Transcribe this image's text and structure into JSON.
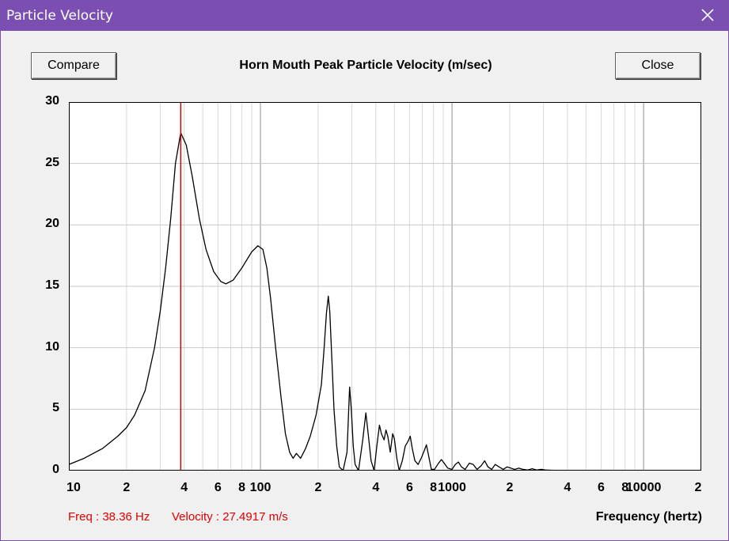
{
  "window": {
    "title": "Particle Velocity"
  },
  "buttons": {
    "compare_label": "Compare",
    "close_label": "Close"
  },
  "status": {
    "freq_text": "Freq : 38.36 Hz",
    "velocity_text": "Velocity : 27.4917 m/s"
  },
  "colors": {
    "titlebar": "#7a4fb1",
    "cursor": "#e00000",
    "curve": "#000000",
    "grid": "#c8c8c8"
  },
  "chart_data": {
    "type": "line",
    "title": "Horn Mouth Peak Particle Velocity (m/sec)",
    "xlabel": "Frequency (hertz)",
    "ylabel": "",
    "x_scale": "log",
    "xlim": [
      10,
      20000
    ],
    "ylim": [
      0,
      30
    ],
    "grid": true,
    "y_ticks": [
      "0",
      "5",
      "10",
      "15",
      "20",
      "25",
      "30"
    ],
    "x_tick_labels": [
      {
        "x": 10,
        "label": "10"
      },
      {
        "x": 20,
        "label": "2"
      },
      {
        "x": 40,
        "label": "4"
      },
      {
        "x": 60,
        "label": "6"
      },
      {
        "x": 80,
        "label": "8"
      },
      {
        "x": 100,
        "label": "100"
      },
      {
        "x": 200,
        "label": "2"
      },
      {
        "x": 400,
        "label": "4"
      },
      {
        "x": 600,
        "label": "6"
      },
      {
        "x": 800,
        "label": "8"
      },
      {
        "x": 1000,
        "label": "1000"
      },
      {
        "x": 2000,
        "label": "2"
      },
      {
        "x": 4000,
        "label": "4"
      },
      {
        "x": 6000,
        "label": "6"
      },
      {
        "x": 8000,
        "label": "8"
      },
      {
        "x": 10000,
        "label": "10000"
      },
      {
        "x": 20000,
        "label": "2"
      }
    ],
    "cursor_x": 38.36,
    "series": [
      {
        "points": [
          [
            10,
            0.5
          ],
          [
            12,
            1.0
          ],
          [
            15,
            1.8
          ],
          [
            18,
            2.8
          ],
          [
            20,
            3.5
          ],
          [
            22,
            4.5
          ],
          [
            25,
            6.5
          ],
          [
            28,
            10
          ],
          [
            30,
            13
          ],
          [
            32,
            16.5
          ],
          [
            34,
            20.5
          ],
          [
            36,
            25
          ],
          [
            38.36,
            27.5
          ],
          [
            41,
            26.5
          ],
          [
            44,
            24
          ],
          [
            48,
            20.5
          ],
          [
            52,
            18
          ],
          [
            57,
            16.2
          ],
          [
            62,
            15.4
          ],
          [
            66,
            15.2
          ],
          [
            72,
            15.5
          ],
          [
            80,
            16.5
          ],
          [
            90,
            17.8
          ],
          [
            97,
            18.3
          ],
          [
            103,
            18
          ],
          [
            108,
            16.5
          ],
          [
            113,
            14
          ],
          [
            120,
            10
          ],
          [
            128,
            6
          ],
          [
            135,
            3
          ],
          [
            142,
            1.5
          ],
          [
            148,
            1
          ],
          [
            154,
            1.4
          ],
          [
            162,
            1
          ],
          [
            172,
            1.8
          ],
          [
            182,
            2.8
          ],
          [
            195,
            4.5
          ],
          [
            208,
            7
          ],
          [
            215,
            10
          ],
          [
            221,
            12.8
          ],
          [
            226,
            14.2
          ],
          [
            230,
            13
          ],
          [
            236,
            9
          ],
          [
            242,
            5
          ],
          [
            250,
            2
          ],
          [
            258,
            0.3
          ],
          [
            270,
            0
          ],
          [
            283,
            1.5
          ],
          [
            292,
            6.8
          ],
          [
            298,
            5
          ],
          [
            305,
            2
          ],
          [
            312,
            0.5
          ],
          [
            325,
            0
          ],
          [
            342,
            2.5
          ],
          [
            355,
            4.7
          ],
          [
            365,
            3
          ],
          [
            378,
            0.8
          ],
          [
            392,
            0
          ],
          [
            405,
            2
          ],
          [
            418,
            3.7
          ],
          [
            428,
            3
          ],
          [
            442,
            2.5
          ],
          [
            452,
            3.3
          ],
          [
            462,
            2.8
          ],
          [
            476,
            1.5
          ],
          [
            490,
            3
          ],
          [
            500,
            2.6
          ],
          [
            515,
            1
          ],
          [
            530,
            0
          ],
          [
            550,
            0.8
          ],
          [
            570,
            2
          ],
          [
            590,
            2.4
          ],
          [
            605,
            2.8
          ],
          [
            620,
            1.8
          ],
          [
            640,
            0.8
          ],
          [
            665,
            0.5
          ],
          [
            690,
            1
          ],
          [
            715,
            1.6
          ],
          [
            735,
            2.1
          ],
          [
            755,
            1.2
          ],
          [
            780,
            0.1
          ],
          [
            810,
            0.1
          ],
          [
            850,
            0.6
          ],
          [
            880,
            0.9
          ],
          [
            910,
            0.6
          ],
          [
            950,
            0.2
          ],
          [
            1000,
            0.1
          ],
          [
            1040,
            0.5
          ],
          [
            1080,
            0.7
          ],
          [
            1120,
            0.3
          ],
          [
            1170,
            0.1
          ],
          [
            1230,
            0.6
          ],
          [
            1290,
            0.5
          ],
          [
            1350,
            0.1
          ],
          [
            1420,
            0.4
          ],
          [
            1480,
            0.8
          ],
          [
            1540,
            0.3
          ],
          [
            1610,
            0.1
          ],
          [
            1680,
            0.5
          ],
          [
            1760,
            0.3
          ],
          [
            1850,
            0.1
          ],
          [
            1940,
            0.3
          ],
          [
            2030,
            0.2
          ],
          [
            2120,
            0.1
          ],
          [
            2230,
            0.2
          ],
          [
            2350,
            0.1
          ],
          [
            2480,
            0.05
          ],
          [
            2620,
            0.15
          ],
          [
            2760,
            0.05
          ],
          [
            2920,
            0.1
          ],
          [
            3080,
            0.05
          ],
          [
            3400,
            0.02
          ],
          [
            4000,
            0
          ],
          [
            20000,
            0
          ]
        ]
      }
    ]
  }
}
